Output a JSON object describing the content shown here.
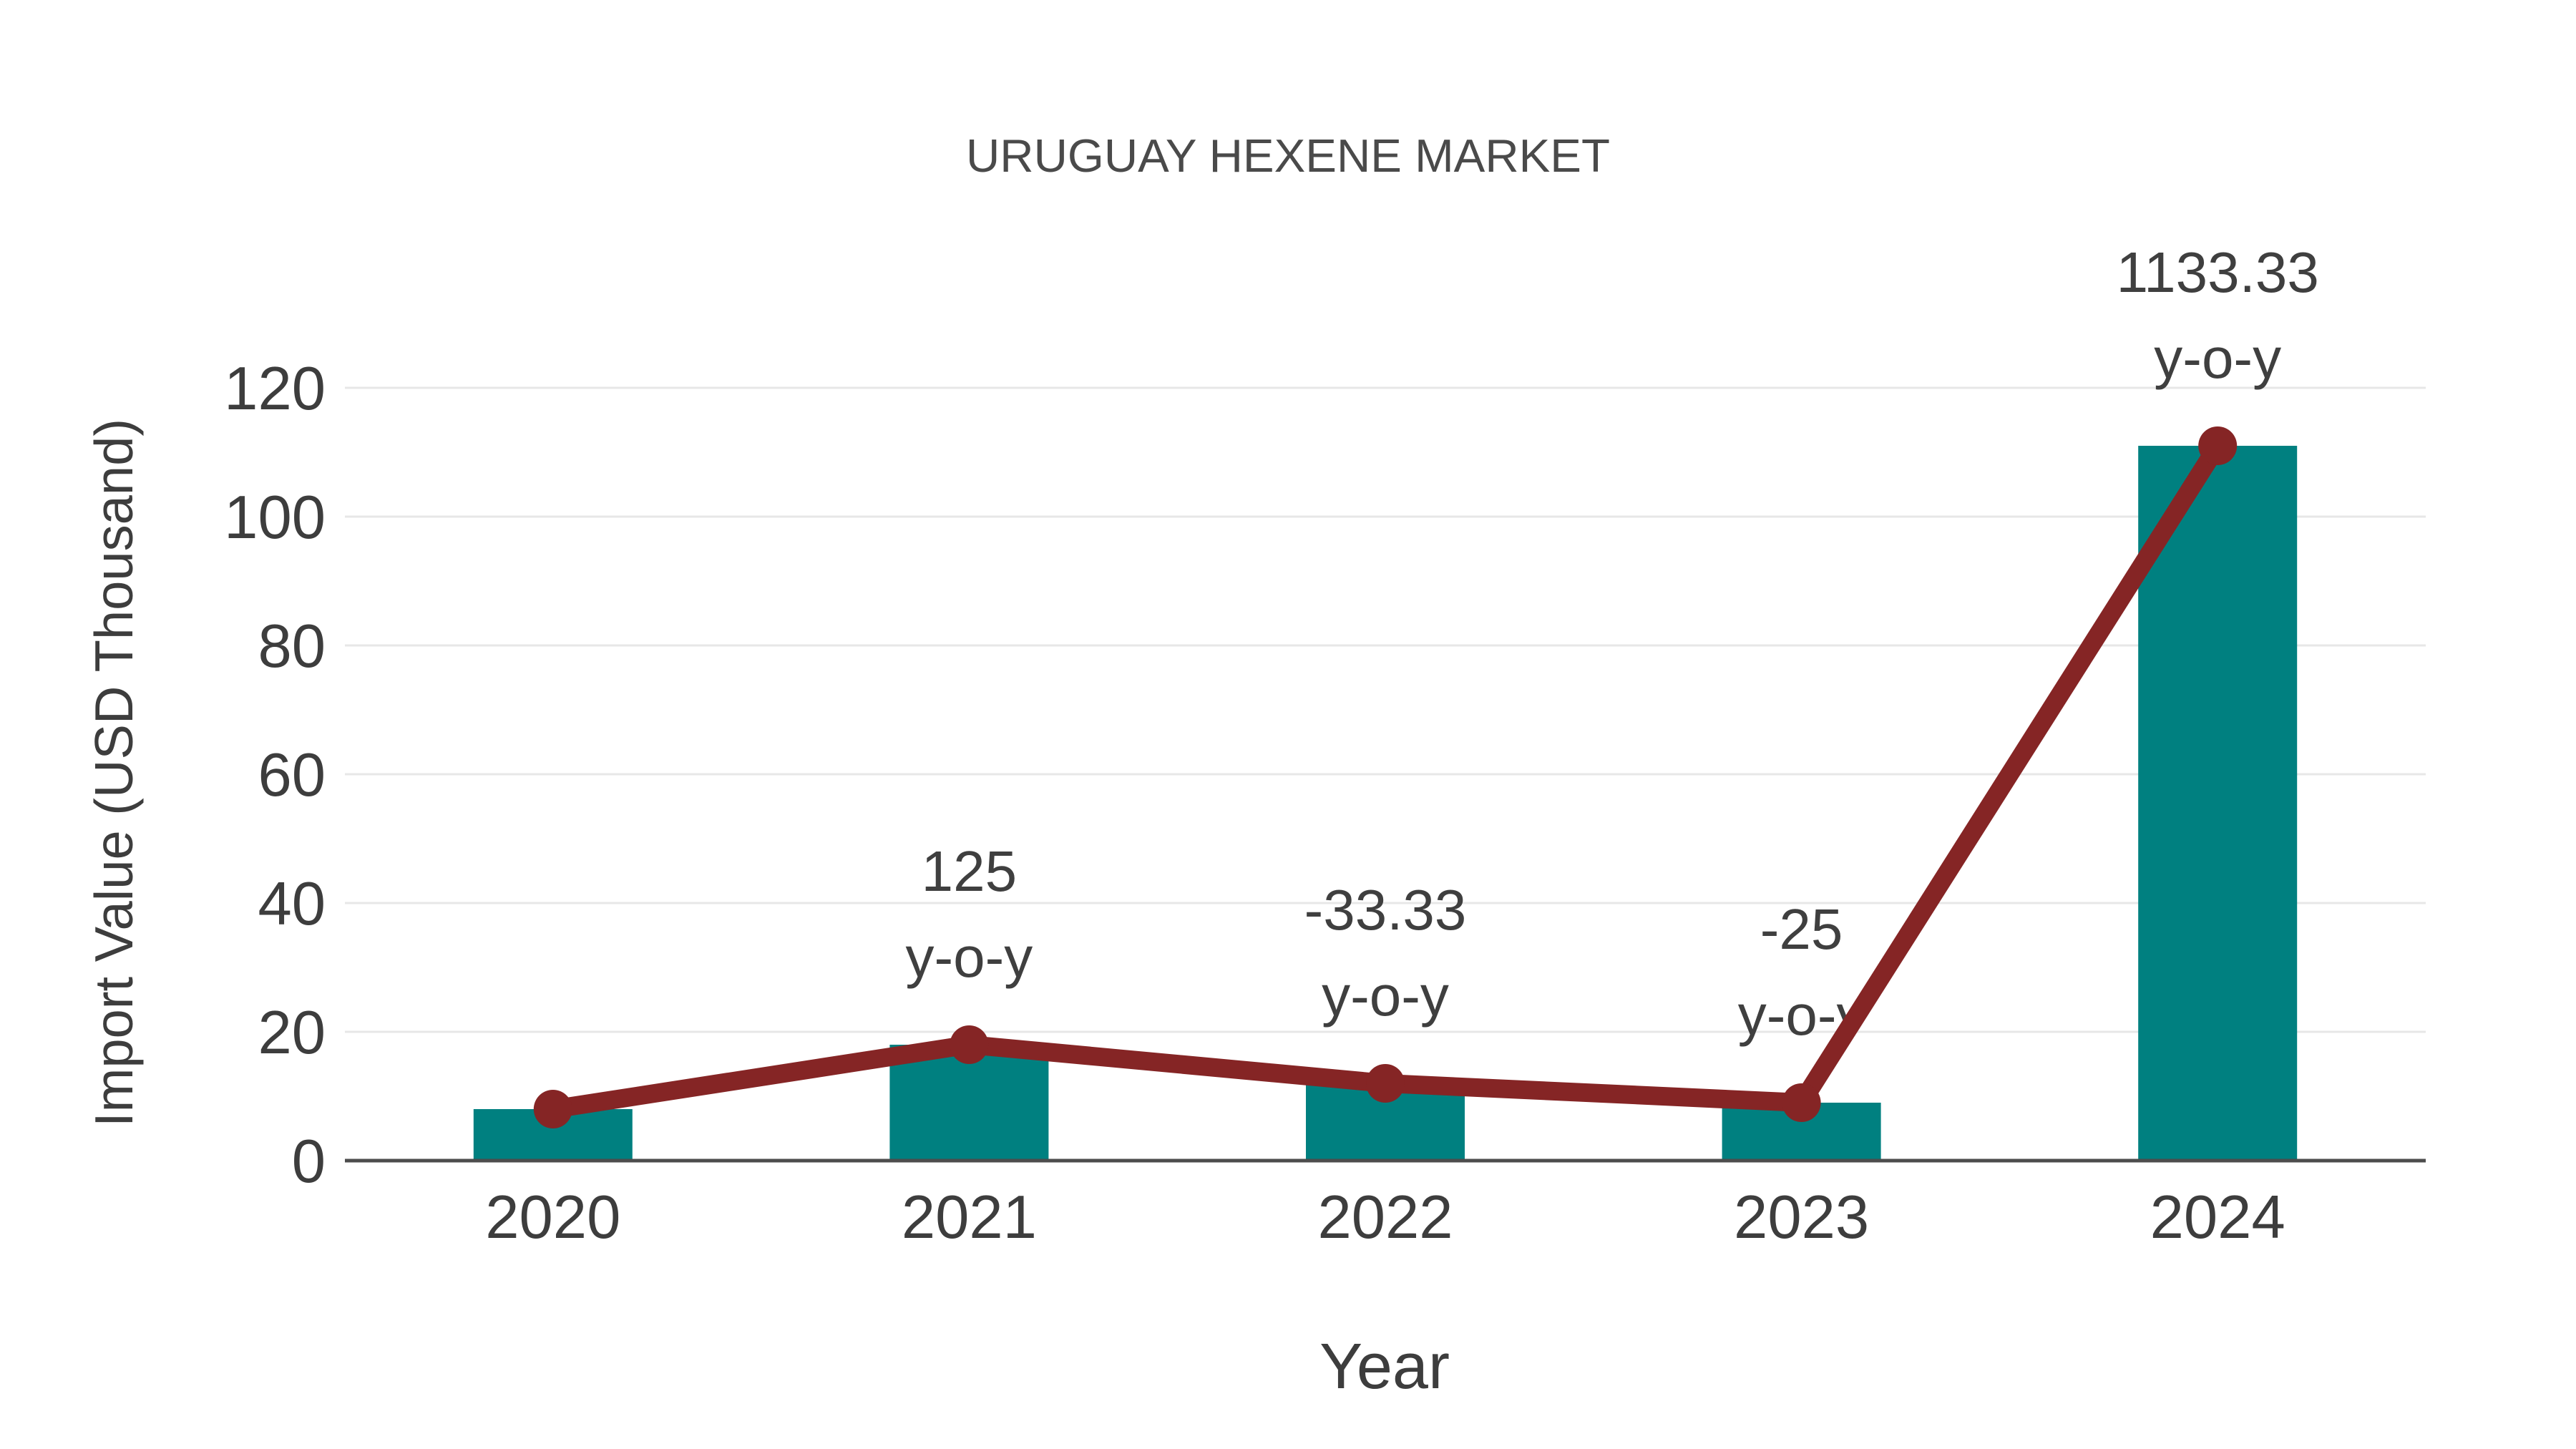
{
  "title": "URUGUAY HEXENE MARKET",
  "chart_data": {
    "type": "bar",
    "title": "URUGUAY HEXENE MARKET",
    "xlabel": "Year",
    "ylabel": "Import Value (USD Thousand)",
    "categories": [
      "2020",
      "2021",
      "2022",
      "2023",
      "2024"
    ],
    "series": [
      {
        "name": "import-value-bars",
        "type": "bar",
        "values": [
          8,
          18,
          12,
          9,
          111
        ],
        "color": "#008080"
      },
      {
        "name": "import-value-line",
        "type": "line",
        "values": [
          8,
          18,
          12,
          9,
          111
        ],
        "color": "#852525"
      }
    ],
    "annotations": [
      {
        "category": "2021",
        "value_text": "125",
        "unit_text": "y-o-y"
      },
      {
        "category": "2022",
        "value_text": "-33.33",
        "unit_text": "y-o-y"
      },
      {
        "category": "2023",
        "value_text": "-25",
        "unit_text": "y-o-y"
      },
      {
        "category": "2024",
        "value_text": "1133.33",
        "unit_text": "y-o-y"
      }
    ],
    "ylim": [
      0,
      120
    ],
    "yticks": [
      0,
      20,
      40,
      60,
      80,
      100,
      120
    ],
    "grid": true,
    "legend_position": "none",
    "colors": {
      "bar": "#008080",
      "line": "#852525",
      "marker": "#852525",
      "gridline": "#e7e7e7",
      "axis_line": "#4d4d4d",
      "text": "#3d3d3d",
      "title_text": "#4a4a4a"
    }
  }
}
